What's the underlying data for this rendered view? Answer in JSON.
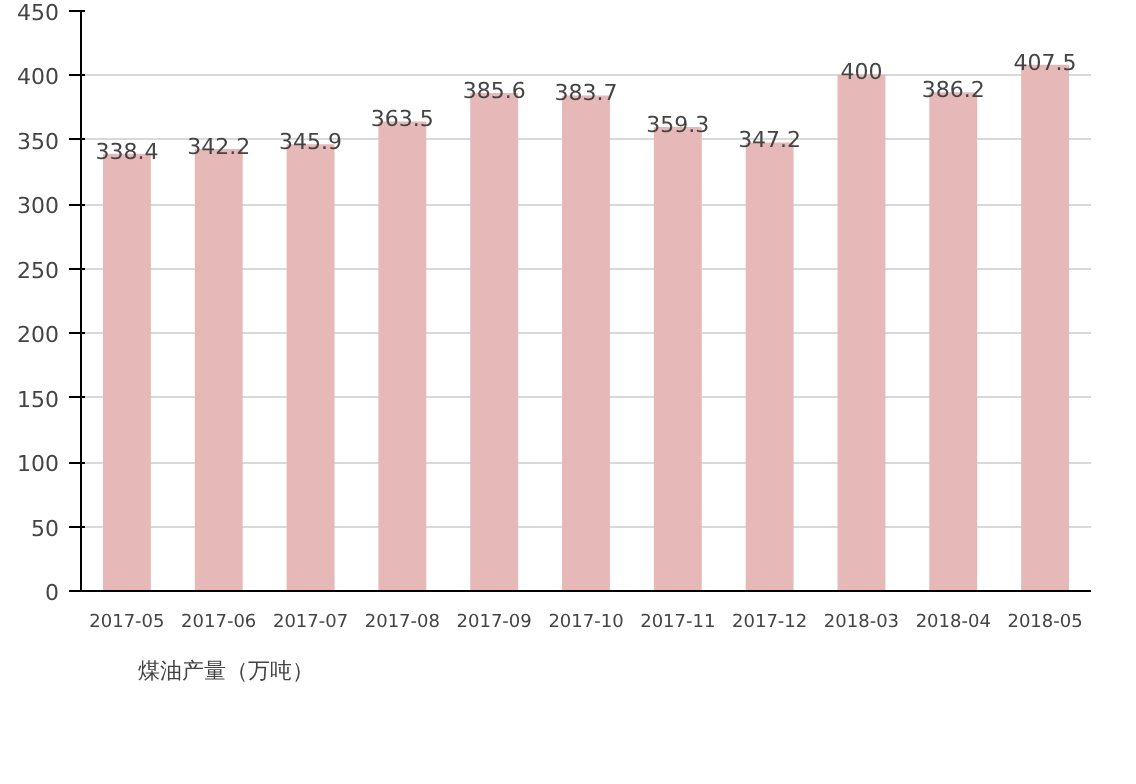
{
  "chart_data": {
    "type": "bar",
    "categories": [
      "2017-05",
      "2017-06",
      "2017-07",
      "2017-08",
      "2017-09",
      "2017-10",
      "2017-11",
      "2017-12",
      "2018-03",
      "2018-04",
      "2018-05"
    ],
    "series": [
      {
        "name": "煤油产量（万吨）",
        "color": "#e6b9b8",
        "values": [
          338.4,
          342.2,
          345.9,
          363.5,
          385.6,
          383.7,
          359.3,
          347.2,
          400,
          386.2,
          407.5
        ]
      }
    ],
    "ylim": [
      0,
      450
    ],
    "yticks": [
      0,
      50,
      100,
      150,
      200,
      250,
      300,
      350,
      400,
      450
    ],
    "grid": "y",
    "legend": "bottom left",
    "data_labels": true
  }
}
